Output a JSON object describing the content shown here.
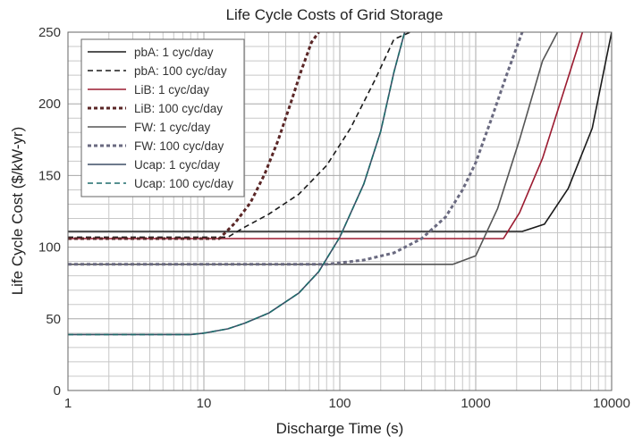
{
  "chart_data": {
    "type": "line",
    "title": "Life Cycle Costs of Grid Storage",
    "xlabel": "Discharge Time (s)",
    "ylabel": "Life Cycle Cost ($/kW-yr)",
    "xscale": "log",
    "xlim": [
      1,
      10000
    ],
    "ylim": [
      0,
      250
    ],
    "grid": true,
    "legend_position": "top-left",
    "x_ticks": [
      1,
      10,
      100,
      1000,
      10000
    ],
    "x_tick_labels": [
      "1",
      "10",
      "100",
      "1000",
      "10000"
    ],
    "y_ticks": [
      0,
      50,
      100,
      150,
      200,
      250
    ],
    "y_tick_labels": [
      "0",
      "50",
      "100",
      "150",
      "200",
      "250"
    ],
    "series": [
      {
        "name": "pbA: 1 cyc/day",
        "color": "#1a1a1a",
        "dash": "solid",
        "x": [
          1,
          2200,
          3200,
          4800,
          7200,
          10000
        ],
        "y": [
          111,
          111,
          116,
          141,
          183,
          250
        ]
      },
      {
        "name": "pbA: 100 cyc/day",
        "color": "#1a1a1a",
        "dash": "dashed",
        "x": [
          1,
          15,
          20,
          30,
          50,
          80,
          120,
          180,
          250,
          330
        ],
        "y": [
          107,
          107,
          114,
          123,
          137,
          157,
          183,
          216,
          245,
          250
        ]
      },
      {
        "name": "LiB: 1 cyc/day",
        "color": "#9b1b30",
        "dash": "solid",
        "x": [
          1,
          1600,
          2100,
          3100,
          4700,
          6100
        ],
        "y": [
          106,
          106,
          124,
          162,
          216,
          250
        ]
      },
      {
        "name": "LiB: 100 cyc/day",
        "color": "#5a2626",
        "dash": "dotted",
        "x": [
          1,
          13,
          17,
          22,
          28,
          35,
          43,
          52,
          62,
          70
        ],
        "y": [
          106,
          106,
          117,
          131,
          151,
          174,
          199,
          223,
          243,
          250
        ]
      },
      {
        "name": "FW: 1 cyc/day",
        "color": "#555555",
        "dash": "solid",
        "x": [
          1,
          680,
          1000,
          1450,
          2100,
          3100,
          4000
        ],
        "y": [
          88,
          88,
          94,
          127,
          175,
          230,
          250
        ]
      },
      {
        "name": "FW: 100 cyc/day",
        "color": "#6a6a80",
        "dash": "dotted",
        "x": [
          1,
          80,
          150,
          250,
          400,
          600,
          800,
          1000,
          1300,
          1700,
          2200
        ],
        "y": [
          88,
          88,
          91,
          96,
          106,
          121,
          140,
          159,
          189,
          221,
          250
        ]
      },
      {
        "name": "Ucap: 1 cyc/day",
        "color": "#3d4f66",
        "dash": "solid",
        "x": [
          1,
          8,
          10,
          15,
          20,
          30,
          50,
          70,
          100,
          150,
          200,
          250,
          300
        ],
        "y": [
          39,
          39,
          40,
          43,
          47,
          54,
          68,
          83,
          107,
          144,
          181,
          222,
          250
        ]
      },
      {
        "name": "Ucap: 100 cyc/day",
        "color": "#1e6b6b",
        "dash": "dashed",
        "x": [
          1,
          8,
          10,
          15,
          20,
          30,
          50,
          70,
          100,
          150,
          200,
          250,
          300
        ],
        "y": [
          39,
          39,
          40,
          43,
          47,
          54,
          68,
          83,
          107,
          144,
          181,
          222,
          250
        ]
      }
    ]
  }
}
